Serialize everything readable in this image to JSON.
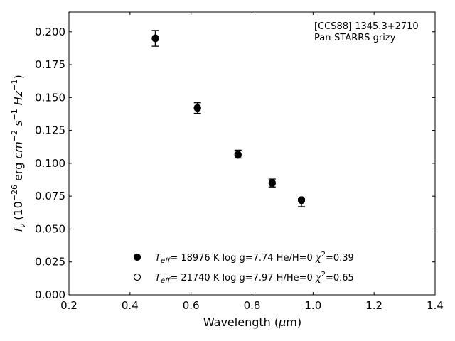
{
  "chart_data": {
    "type": "scatter",
    "xlabel": "Wavelength (μm)",
    "ylabel": "f_ν (10^-26 erg cm^-2 s^-1 Hz^-1)",
    "xlim": [
      0.2,
      1.4
    ],
    "ylim": [
      0.0,
      0.215
    ],
    "x_ticks": [
      "0.2",
      "0.4",
      "0.6",
      "0.8",
      "1.0",
      "1.2",
      "1.4"
    ],
    "y_ticks": [
      "0.000",
      "0.025",
      "0.050",
      "0.075",
      "0.100",
      "0.125",
      "0.150",
      "0.175",
      "0.200"
    ],
    "grid": false,
    "ticks_direction": "in",
    "annotation": [
      "[CCS88] 1345.3+2710",
      "Pan-STARRS grizy"
    ],
    "observed": {
      "x": [
        0.483,
        0.621,
        0.754,
        0.866,
        0.962
      ],
      "y": [
        0.195,
        0.142,
        0.107,
        0.085,
        0.071
      ],
      "yerr_low": [
        0.006,
        0.004,
        0.003,
        0.003,
        0.004
      ],
      "yerr_high": [
        0.006,
        0.004,
        0.003,
        0.003,
        0.002
      ]
    },
    "series": [
      {
        "marker": "filled-circle",
        "legend_text": "T_eff= 18976 K  log g=7.74  He/H=0  χ²=0.39",
        "x": [
          0.483,
          0.621,
          0.754,
          0.866,
          0.962
        ],
        "y": [
          0.1948,
          0.1419,
          0.1062,
          0.0848,
          0.0718
        ]
      },
      {
        "marker": "open-circle",
        "legend_text": "T_eff= 21740 K  log g=7.97  H/He=0  χ²=0.65",
        "x": [
          0.483,
          0.621,
          0.754,
          0.866,
          0.962
        ],
        "y": [
          0.1952,
          0.1423,
          0.1068,
          0.0852,
          0.0722
        ]
      }
    ],
    "legend": {
      "placement": "bottom-center",
      "entries": [
        {
          "marker": "filled-circle",
          "teff": "18976 K",
          "logg": "7.74",
          "comp": "He/H=0",
          "chi": "=0.39"
        },
        {
          "marker": "open-circle",
          "teff": "21740 K",
          "logg": "7.97",
          "comp": "H/He=0",
          "chi": "=0.65"
        }
      ]
    },
    "colors": {
      "marker": "#000000",
      "axes": "#000000",
      "background": "#ffffff"
    }
  }
}
